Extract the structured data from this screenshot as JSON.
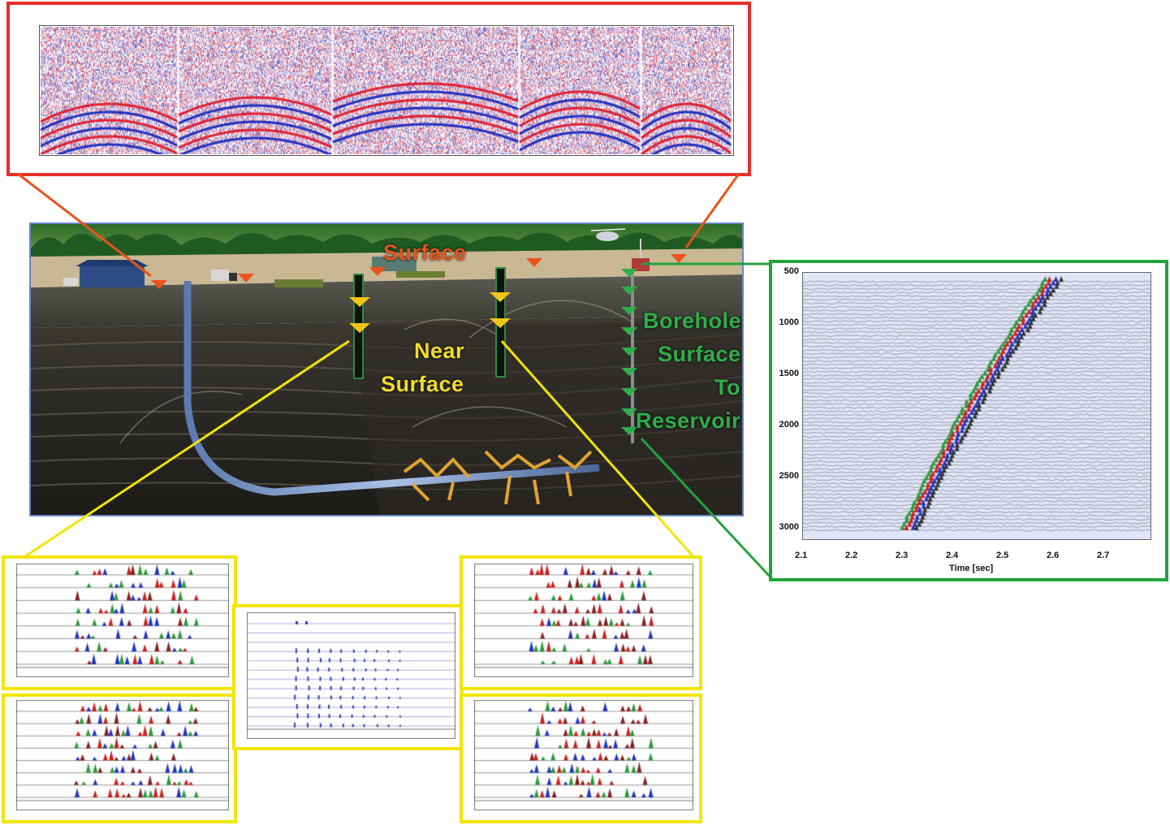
{
  "scene": {
    "labels": {
      "surface": "Surface",
      "near_surface_line1": "Near",
      "near_surface_line2": "Surface",
      "borehole_line1": "Borehole",
      "borehole_line2": "Surface",
      "borehole_line3": "To",
      "borehole_line4": "Reservoir"
    }
  },
  "borehole_panel": {
    "y_ticks": [
      "500",
      "1000",
      "1500",
      "2000",
      "2500",
      "3000"
    ],
    "x_ticks": [
      "2.1",
      "2.2",
      "2.3",
      "2.4",
      "2.5",
      "2.6",
      "2.7"
    ],
    "xlabel": "Time [sec]"
  },
  "colors": {
    "surface_frame": "#e53027",
    "near_surface_frame": "#f2e500",
    "borehole_frame": "#22a33b",
    "surface_text": "#e8541c",
    "near_surface_text": "#f2dc28",
    "borehole_text": "#2fae4a",
    "seismic_red": "#e02030",
    "seismic_blue": "#2030c0"
  },
  "icons": [
    "surface-receiver-marker",
    "near-surface-receiver-marker",
    "borehole-receiver-marker",
    "drilling-rig-icon",
    "helicopter-icon",
    "truck-icon",
    "building-icon"
  ]
}
